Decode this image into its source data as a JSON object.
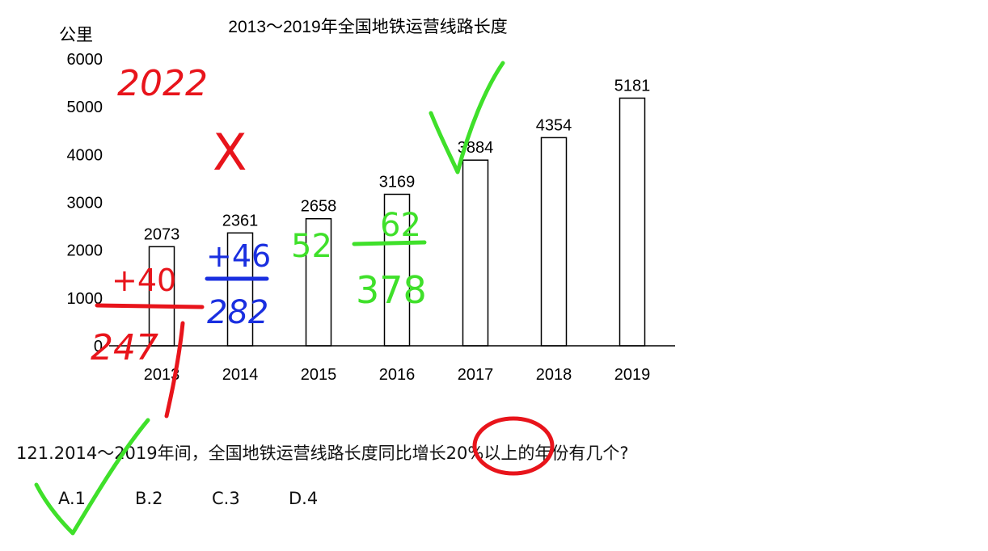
{
  "chart_data": {
    "type": "bar",
    "title": "2013～2019年全国地铁运营线路长度",
    "ylabel": "公里",
    "xlabel": "",
    "categories": [
      "2013",
      "2014",
      "2015",
      "2016",
      "2017",
      "2018",
      "2019"
    ],
    "values": [
      2073,
      2361,
      2658,
      3169,
      3884,
      4354,
      5181
    ],
    "data_labels": [
      "2073",
      "2361",
      "2658",
      "3169",
      "3884",
      "4354",
      "5181"
    ],
    "ylim": [
      0,
      6000
    ],
    "yticks": [
      "0",
      "1000",
      "2000",
      "3000",
      "4000",
      "5000",
      "6000"
    ],
    "grid": false,
    "bar_fill": "#ffffff",
    "bar_stroke": "#000000"
  },
  "question": {
    "text": "121.2014～2019年间，全国地铁运营线路长度同比增长20%以上的年份有几个?"
  },
  "options": [
    {
      "label": "A.1"
    },
    {
      "label": "B.2"
    },
    {
      "label": "C.3"
    },
    {
      "label": "D.4"
    }
  ],
  "annotations": {
    "red_top": "2022",
    "red_x": "X",
    "red_add": "+40",
    "red_result": "247",
    "blue_add": "+46",
    "blue_result": "282",
    "green_top": "52",
    "green_add": "62",
    "green_result": "378",
    "colors": {
      "red": "#e8141b",
      "blue": "#1a2fe0",
      "green": "#3fe02a"
    }
  }
}
